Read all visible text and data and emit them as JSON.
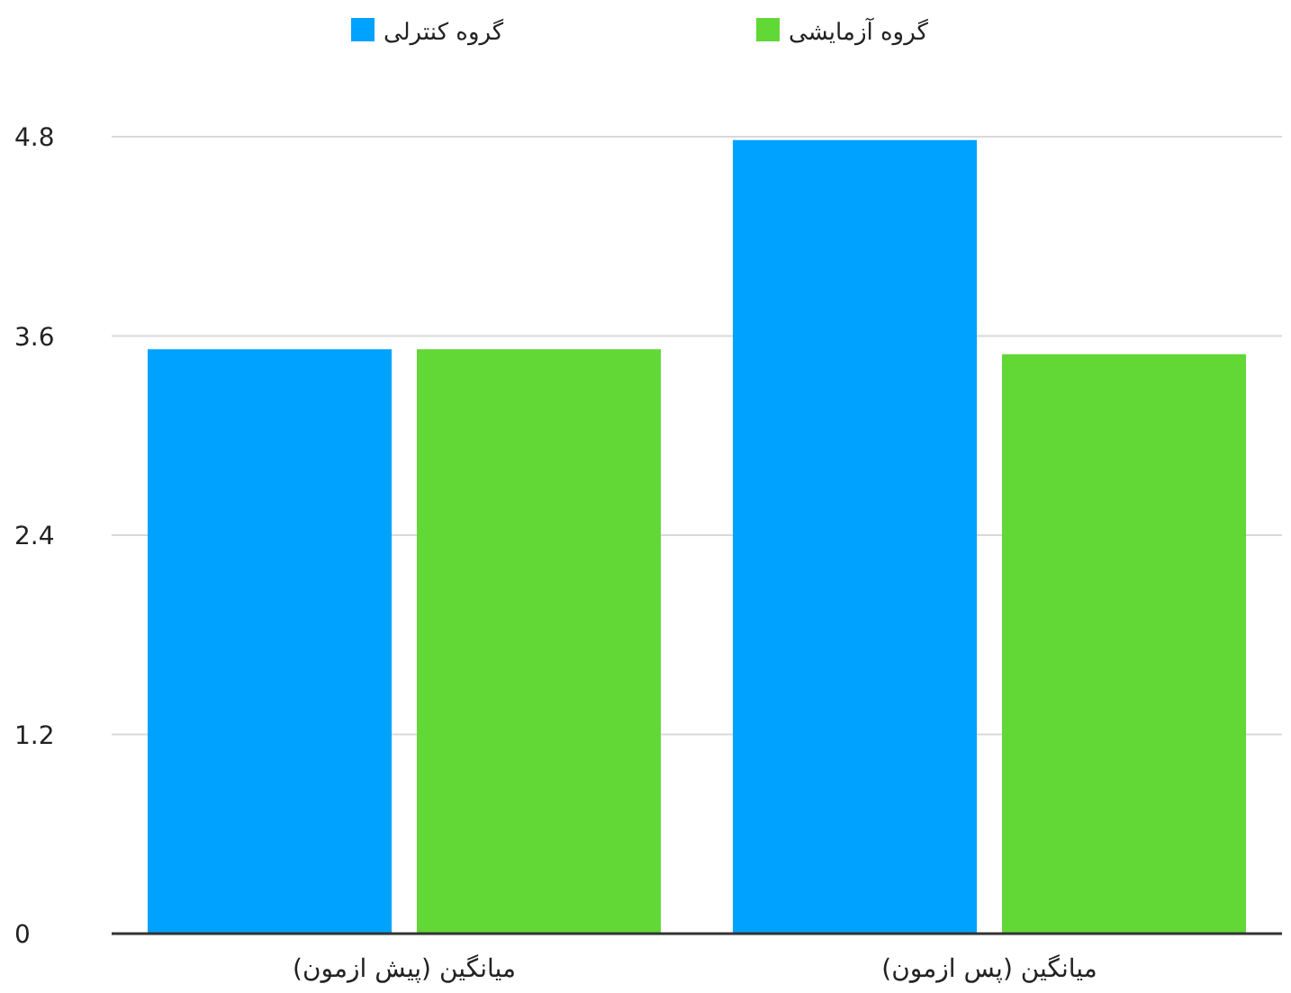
{
  "chart_data": {
    "type": "bar",
    "categories": [
      "میانگین (پیش ازمون)",
      "میانگین (پس ازمون)"
    ],
    "series": [
      {
        "name": "گروه کنترلی",
        "color": "#00a2ff",
        "values": [
          3.52,
          4.78
        ]
      },
      {
        "name": "گروه آزمایشی",
        "color": "#61d836",
        "values": [
          3.52,
          3.49
        ]
      }
    ],
    "ylim": [
      0,
      4.8
    ],
    "yticks": [
      0,
      1.2,
      2.4,
      3.6,
      4.8
    ],
    "grid": "y",
    "legend": "top"
  }
}
